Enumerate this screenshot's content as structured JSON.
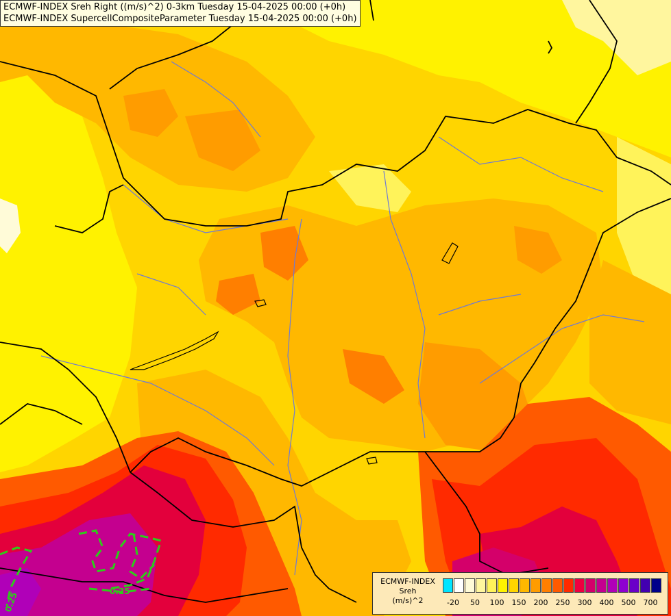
{
  "titles": {
    "line1": "ECMWF-INDEX Sreh Right ((m/s)^2) 0-3km Tuesday 15-04-2025 00:00 (+0h)",
    "line2": "ECMWF-INDEX SupercellCompositeParameter Tuesday 15-04-2025 00:00 (+0h)"
  },
  "legend": {
    "title_line1": "ECMWF-INDEX",
    "title_line2": "Sreh",
    "title_line3": "(m/s)^2",
    "colors": [
      "#00e5ff",
      "#ffffff",
      "#fffbd8",
      "#fff69e",
      "#fff35a",
      "#fff200",
      "#ffd500",
      "#ffb800",
      "#ff9c00",
      "#ff7f00",
      "#ff5a00",
      "#ff2a00",
      "#ef0040",
      "#d4006a",
      "#c4008f",
      "#b000b8",
      "#8e00d0",
      "#6a00c8",
      "#4200b0",
      "#00008a"
    ],
    "ticks": [
      "-20",
      "50",
      "100",
      "150",
      "200",
      "250",
      "300",
      "400",
      "500",
      "700"
    ]
  },
  "contour_labels": [
    "0.25",
    "0.25"
  ],
  "colors": {
    "field_yellow": "#fff200",
    "field_gold": "#ffd500",
    "field_orange": "#ffb800",
    "field_dark_orange": "#ff7f00",
    "field_red": "#ff2a00",
    "field_crimson": "#e3003c",
    "field_magenta": "#c4008f",
    "contour_green": "#2ecc1a"
  }
}
